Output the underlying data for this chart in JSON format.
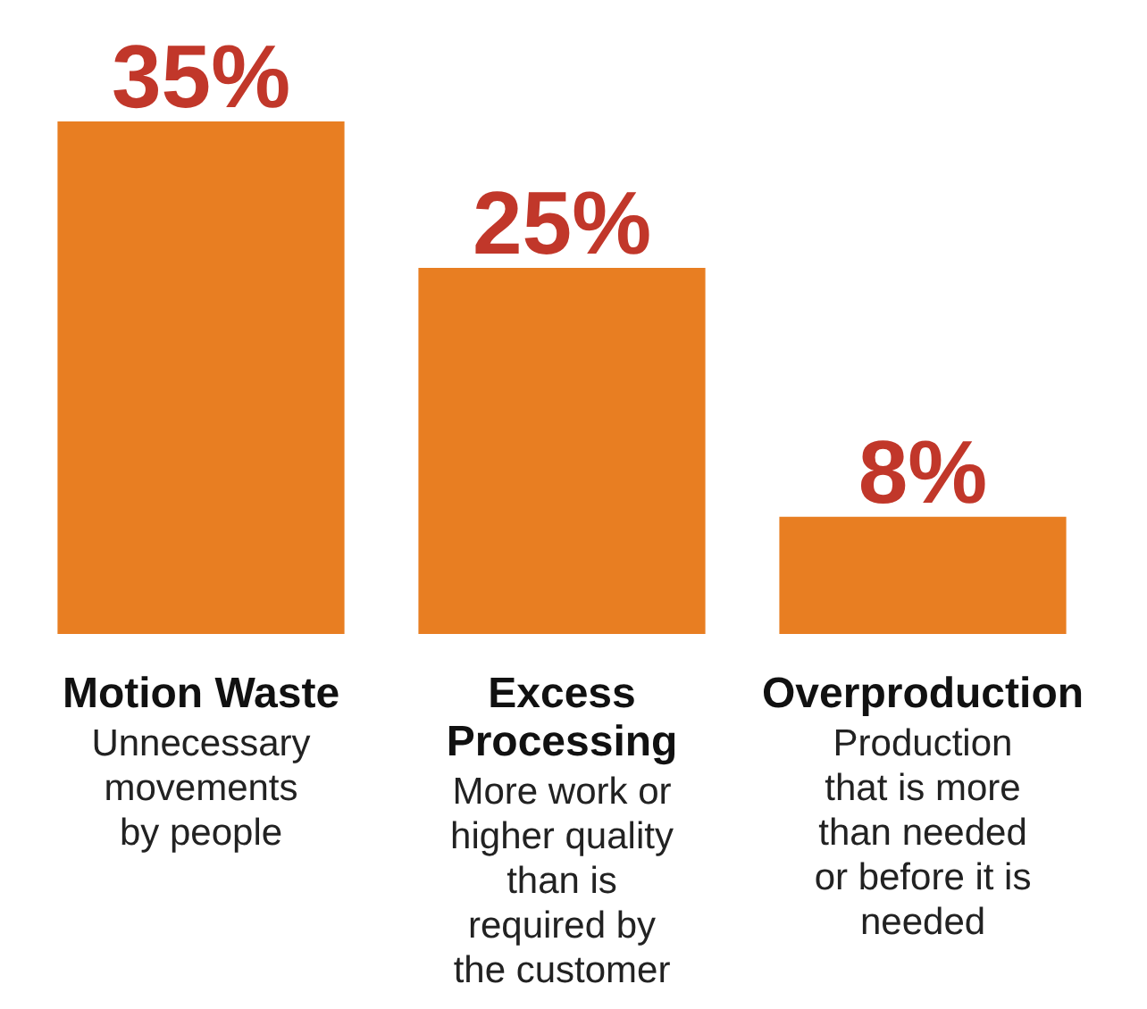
{
  "chart_data": {
    "type": "bar",
    "categories": [
      "Motion Waste",
      "Excess Processing",
      "Overproduction"
    ],
    "values": [
      35,
      25,
      8
    ],
    "value_labels": [
      "35%",
      "25%",
      "8%"
    ],
    "color": "#e87e22",
    "annotations": [
      "Unnecessary movements by people",
      "More work or higher quality than is required by the customer",
      "Production that is more than needed or before it is needed"
    ]
  }
}
